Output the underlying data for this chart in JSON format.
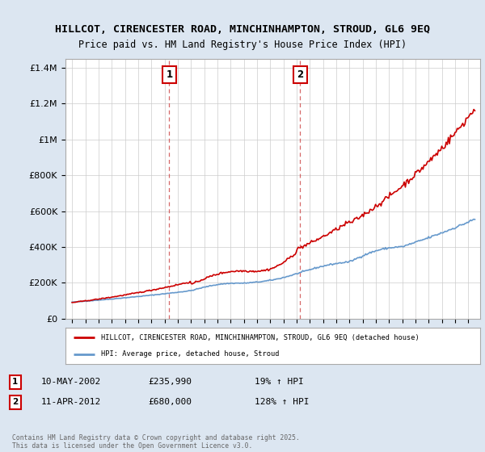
{
  "title_line1": "HILLCOT, CIRENCESTER ROAD, MINCHINHAMPTON, STROUD, GL6 9EQ",
  "title_line2": "Price paid vs. HM Land Registry's House Price Index (HPI)",
  "ylabel_ticks": [
    "£0",
    "£200K",
    "£400K",
    "£600K",
    "£800K",
    "£1M",
    "£1.2M",
    "£1.4M"
  ],
  "y_values": [
    0,
    200000,
    400000,
    600000,
    800000,
    1000000,
    1200000,
    1400000
  ],
  "ylim": [
    0,
    1450000
  ],
  "x_start_year": 1995,
  "x_end_year": 2025,
  "sale1_year": 2002.36,
  "sale1_price": 235990,
  "sale2_year": 2012.27,
  "sale2_price": 680000,
  "annotation1_date": "10-MAY-2002",
  "annotation1_price": "£235,990",
  "annotation1_hpi": "19% ↑ HPI",
  "annotation2_date": "11-APR-2012",
  "annotation2_price": "£680,000",
  "annotation2_hpi": "128% ↑ HPI",
  "legend_line1": "HILLCOT, CIRENCESTER ROAD, MINCHINHAMPTON, STROUD, GL6 9EQ (detached house)",
  "legend_line2": "HPI: Average price, detached house, Stroud",
  "copyright_text": "Contains HM Land Registry data © Crown copyright and database right 2025.\nThis data is licensed under the Open Government Licence v3.0.",
  "red_color": "#cc0000",
  "blue_color": "#6699cc",
  "background_color": "#dce6f1",
  "plot_bg_color": "#ffffff",
  "grid_color": "#cccccc",
  "dashed_color": "#cc0000"
}
